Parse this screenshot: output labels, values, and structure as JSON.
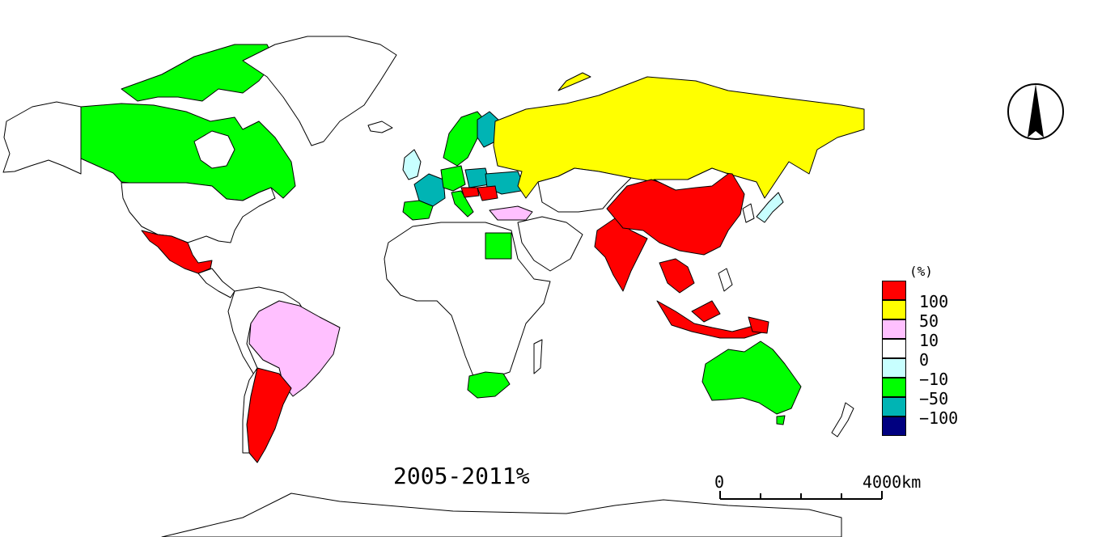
{
  "title": "2005-2011%",
  "legend": {
    "unit": "(%)",
    "classes": [
      {
        "color": "#ff0000",
        "label": "100"
      },
      {
        "color": "#ffff00",
        "label": "50"
      },
      {
        "color": "#ffc0ff",
        "label": "10"
      },
      {
        "color": "#ffffff",
        "label": "0"
      },
      {
        "color": "#c8ffff",
        "label": "−10"
      },
      {
        "color": "#00ff00",
        "label": "−50"
      },
      {
        "color": "#00b4b4",
        "label": "−100"
      },
      {
        "color": "#000080",
        "label": ""
      }
    ]
  },
  "scale_bar": {
    "start": "0",
    "end": "4000km"
  },
  "north_arrow": "north-arrow-icon",
  "colors": {
    "red": "#ff0000",
    "yellow": "#ffff00",
    "pink": "#ffc0ff",
    "white": "#ffffff",
    "lightcyan": "#c8ffff",
    "green": "#00ff00",
    "teal": "#00b4b4",
    "navy": "#000080"
  }
}
